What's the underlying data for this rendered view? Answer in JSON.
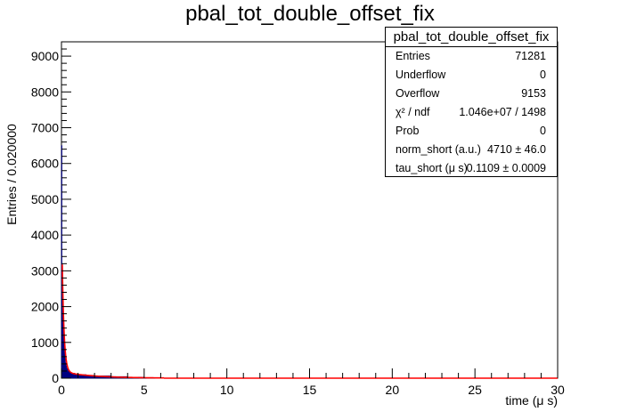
{
  "chart_data": {
    "type": "histogram_with_fit",
    "title": "pbal_tot_double_offset_fix",
    "xlabel": "time (μ s)",
    "ylabel": "Entries / 0.020000",
    "xlim": [
      0,
      30
    ],
    "ylim": [
      0,
      9400
    ],
    "x_ticks": [
      0,
      5,
      10,
      15,
      20,
      25,
      30
    ],
    "y_ticks": [
      0,
      1000,
      2000,
      3000,
      4000,
      5000,
      6000,
      7000,
      8000,
      9000
    ],
    "bin_width": 0.02,
    "histogram": {
      "color": "#000080",
      "x": [
        0.0,
        0.02,
        0.04,
        0.06,
        0.08,
        0.1,
        0.12,
        0.14,
        0.16,
        0.18,
        0.2,
        0.24,
        0.28,
        0.32,
        0.36,
        0.4,
        0.5,
        0.6,
        0.8,
        1.0,
        1.5,
        2.0,
        3.0,
        4.0,
        5.0,
        6.0
      ],
      "y": [
        6500,
        3200,
        2500,
        2050,
        1700,
        1380,
        1150,
        960,
        820,
        700,
        560,
        430,
        340,
        270,
        230,
        195,
        165,
        140,
        120,
        100,
        82,
        66,
        45,
        30,
        18,
        10
      ]
    },
    "fit": {
      "color": "#ff0000",
      "model": "norm_short * exp(-t / tau_short)",
      "x_end": 6.2
    },
    "stats": {
      "name": "pbal_tot_double_offset_fix",
      "rows": [
        {
          "key": "Entries",
          "value": "71281"
        },
        {
          "key": "Underflow",
          "value": "0"
        },
        {
          "key": "Overflow",
          "value": "9153"
        },
        {
          "key": "χ² / ndf",
          "value": "1.046e+07 / 1498"
        },
        {
          "key": "Prob",
          "value": "0"
        },
        {
          "key": "norm_short (a.u.)",
          "value": "4710 ± 46.0"
        },
        {
          "key": "tau_short (μ s)",
          "value": "0.1109 ± 0.0009"
        }
      ],
      "params": {
        "norm_short": 4710,
        "tau_short": 0.1109
      }
    }
  }
}
